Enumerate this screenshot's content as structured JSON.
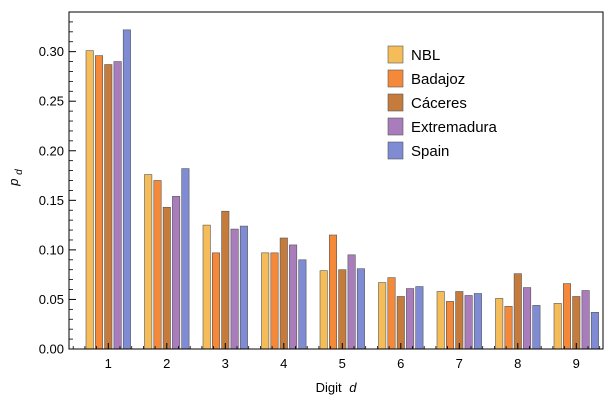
{
  "chart_data": {
    "type": "bar",
    "categories": [
      "1",
      "2",
      "3",
      "4",
      "5",
      "6",
      "7",
      "8",
      "9"
    ],
    "series": [
      {
        "name": "NBL",
        "color": "#f5bd5a",
        "values": [
          0.301,
          0.176,
          0.125,
          0.097,
          0.079,
          0.067,
          0.058,
          0.051,
          0.046
        ]
      },
      {
        "name": "Badajoz",
        "color": "#f5893a",
        "values": [
          0.296,
          0.17,
          0.097,
          0.097,
          0.115,
          0.072,
          0.048,
          0.043,
          0.066
        ]
      },
      {
        "name": "Cáceres",
        "color": "#c47b3c",
        "values": [
          0.287,
          0.143,
          0.139,
          0.112,
          0.08,
          0.053,
          0.058,
          0.076,
          0.053
        ]
      },
      {
        "name": "Extremadura",
        "color": "#a97cbb",
        "values": [
          0.29,
          0.154,
          0.121,
          0.105,
          0.095,
          0.061,
          0.054,
          0.062,
          0.059
        ]
      },
      {
        "name": "Spain",
        "color": "#7f8bd3",
        "values": [
          0.322,
          0.182,
          0.124,
          0.09,
          0.081,
          0.063,
          0.056,
          0.044,
          0.037
        ]
      }
    ],
    "xlabel_prefix": "Digit",
    "xlabel_var": "d",
    "ylabel_base": "p",
    "ylabel_sub": "d",
    "ylim": [
      0,
      0.34
    ],
    "yticks": [
      "0.00",
      "0.05",
      "0.10",
      "0.15",
      "0.20",
      "0.25",
      "0.30"
    ],
    "legend_position": "top-right",
    "grid": false
  }
}
